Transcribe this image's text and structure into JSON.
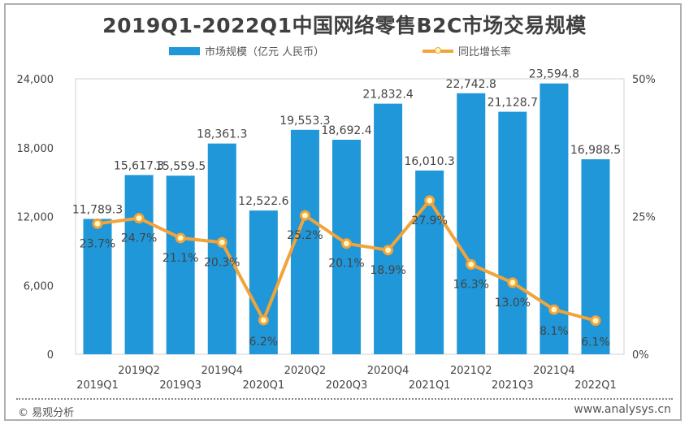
{
  "chart_data": {
    "type": "bar+line",
    "title": "2019Q1-2022Q1中国网络零售B2C市场交易规模",
    "categories": [
      "2019Q1",
      "2019Q2",
      "2019Q3",
      "2019Q4",
      "2020Q1",
      "2020Q2",
      "2020Q3",
      "2020Q4",
      "2021Q1",
      "2021Q2",
      "2021Q3",
      "2021Q4",
      "2022Q1"
    ],
    "series": [
      {
        "name": "市场规模（亿元 人民币）",
        "type": "bar",
        "axis": "left",
        "color": "#1f97d8",
        "values": [
          11789.3,
          15617.3,
          15559.5,
          18361.3,
          12522.6,
          19553.3,
          18692.4,
          21832.4,
          16010.3,
          22742.8,
          21128.7,
          23594.8,
          16988.5
        ],
        "labels": [
          "11,789.3",
          "15,617.3",
          "15,559.5",
          "18,361.3",
          "12,522.6",
          "19,553.3",
          "18,692.4",
          "21,832.4",
          "16,010.3",
          "22,742.8",
          "21,128.7",
          "23,594.8",
          "16,988.5"
        ]
      },
      {
        "name": "同比增长率",
        "type": "line",
        "axis": "right",
        "color": "#f2a33a",
        "values": [
          23.7,
          24.7,
          21.1,
          20.3,
          6.2,
          25.2,
          20.1,
          18.9,
          27.9,
          16.3,
          13.0,
          8.1,
          6.1
        ],
        "labels": [
          "23.7%",
          "24.7%",
          "21.1%",
          "20.3%",
          "6.2%",
          "25.2%",
          "20.1%",
          "18.9%",
          "27.9%",
          "16.3%",
          "13.0%",
          "8.1%",
          "6.1%"
        ]
      }
    ],
    "y_left": {
      "range": [
        0,
        24000
      ],
      "ticks": [
        0,
        6000,
        12000,
        18000,
        24000
      ],
      "tick_labels": [
        "0",
        "6,000",
        "12,000",
        "18,000",
        "24,000"
      ]
    },
    "y_right": {
      "range": [
        0,
        50
      ],
      "ticks": [
        0,
        25,
        50
      ],
      "tick_labels": [
        "0%",
        "25%",
        "50%"
      ]
    },
    "grid": false,
    "legend": "top"
  },
  "footer": {
    "source": "© 易观分析",
    "url": "www.analysys.cn"
  }
}
